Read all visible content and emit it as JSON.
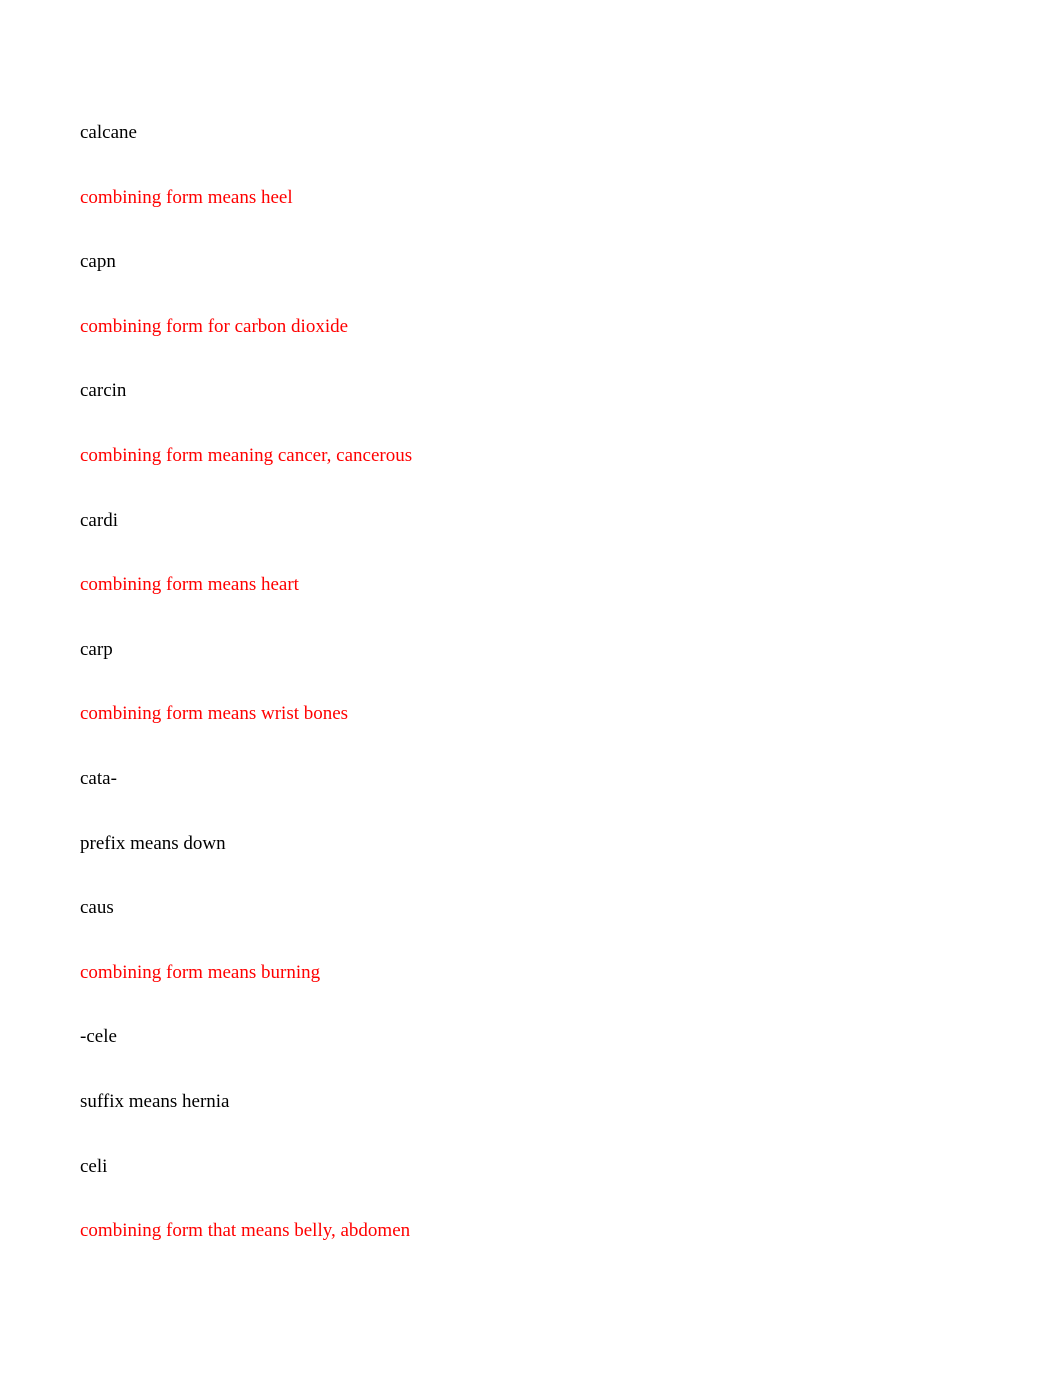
{
  "entries": [
    {
      "term": "calcane",
      "definition": "combining form means heel",
      "defColor": "red"
    },
    {
      "term": "capn",
      "definition": "combining form for carbon dioxide",
      "defColor": "red"
    },
    {
      "term": "carcin",
      "definition": "combining form meaning cancer, cancerous",
      "defColor": "red"
    },
    {
      "term": "cardi",
      "definition": "combining form means heart",
      "defColor": "red"
    },
    {
      "term": "carp",
      "definition": "combining form means wrist bones",
      "defColor": "red"
    },
    {
      "term": "cata-",
      "definition": "prefix means down",
      "defColor": "black"
    },
    {
      "term": "caus",
      "definition": "combining form means burning",
      "defColor": "red"
    },
    {
      "term": "-cele",
      "definition": "suffix means hernia",
      "defColor": "black"
    },
    {
      "term": "celi",
      "definition": "combining form that means belly, abdomen",
      "defColor": "red"
    }
  ],
  "colors": {
    "red": "#ff0000",
    "black": "#000000",
    "background": "#ffffff"
  },
  "typography": {
    "fontFamily": "Georgia, Times New Roman, serif",
    "fontSize": 19,
    "entrySpacing": 38
  }
}
